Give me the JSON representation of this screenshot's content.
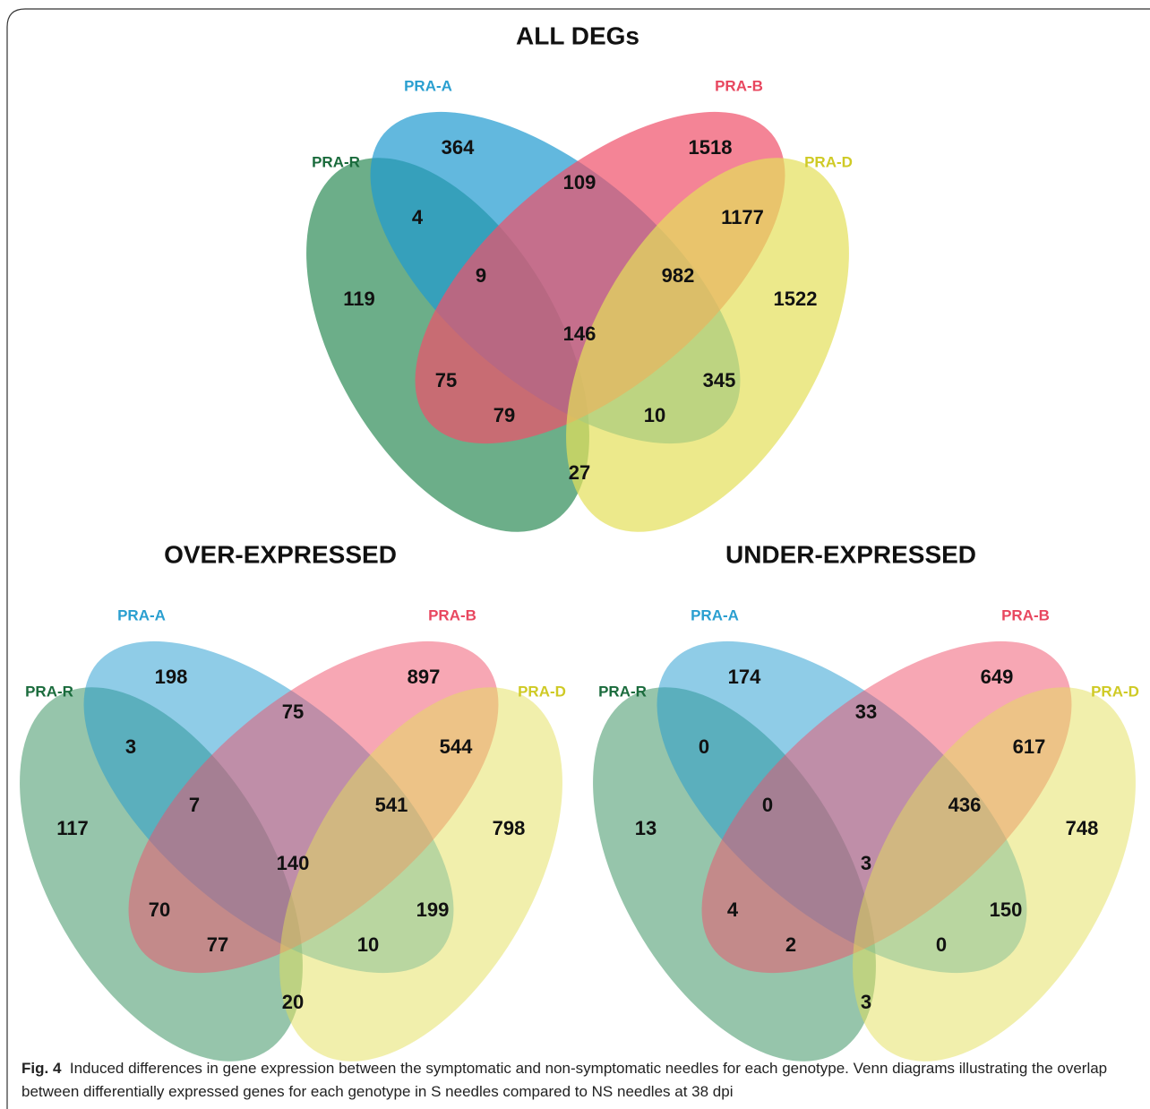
{
  "figure": {
    "diagrams": [
      {
        "title": "ALL DEGs",
        "sets": [
          "PRA-A",
          "PRA-B",
          "PRA-R",
          "PRA-D"
        ],
        "regions": [
          364,
          1518,
          109,
          4,
          1177,
          119,
          9,
          982,
          1522,
          146,
          75,
          345,
          79,
          10,
          27
        ]
      },
      {
        "title": "OVER-EXPRESSED",
        "sets": [
          "PRA-A",
          "PRA-B",
          "PRA-R",
          "PRA-D"
        ],
        "regions": [
          198,
          897,
          75,
          3,
          544,
          117,
          7,
          541,
          798,
          140,
          70,
          199,
          77,
          10,
          20
        ]
      },
      {
        "title": "UNDER-EXPRESSED",
        "sets": [
          "PRA-A",
          "PRA-B",
          "PRA-R",
          "PRA-D"
        ],
        "regions": [
          174,
          649,
          33,
          0,
          617,
          13,
          0,
          436,
          748,
          3,
          4,
          150,
          2,
          0,
          3
        ]
      }
    ],
    "caption": {
      "label": "Fig. 4",
      "text": "Induced differences in gene expression between the symptomatic and non-symptomatic needles for each genotype. Venn diagrams illustrating the overlap between differentially expressed genes for each genotype in S needles compared to NS needles at 38 dpi"
    }
  }
}
